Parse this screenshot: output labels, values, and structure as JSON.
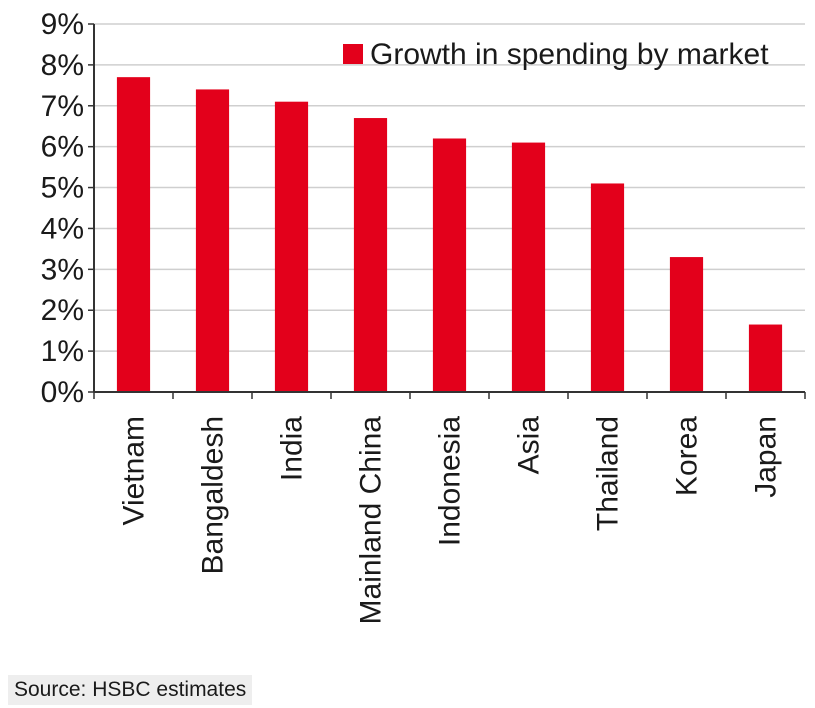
{
  "chart_data": {
    "type": "bar",
    "title": "",
    "xlabel": "",
    "ylabel": "",
    "categories": [
      "Vietnam",
      "Bangaldesh",
      "India",
      "Mainland China",
      "Indonesia",
      "Asia",
      "Thailand",
      "Korea",
      "Japan"
    ],
    "series": [
      {
        "name": "Growth in spending by market",
        "values": [
          7.7,
          7.4,
          7.1,
          6.7,
          6.2,
          6.1,
          5.1,
          3.3,
          1.65
        ]
      }
    ],
    "ylim": [
      0,
      9
    ],
    "yticks": [
      0,
      1,
      2,
      3,
      4,
      5,
      6,
      7,
      8,
      9
    ],
    "ytick_labels": [
      "0%",
      "1%",
      "2%",
      "3%",
      "4%",
      "5%",
      "6%",
      "7%",
      "8%",
      "9%"
    ],
    "grid": "horizontal",
    "legend_position": "top-right",
    "bar_color": "#e3001b"
  },
  "source": "Source: HSBC estimates"
}
